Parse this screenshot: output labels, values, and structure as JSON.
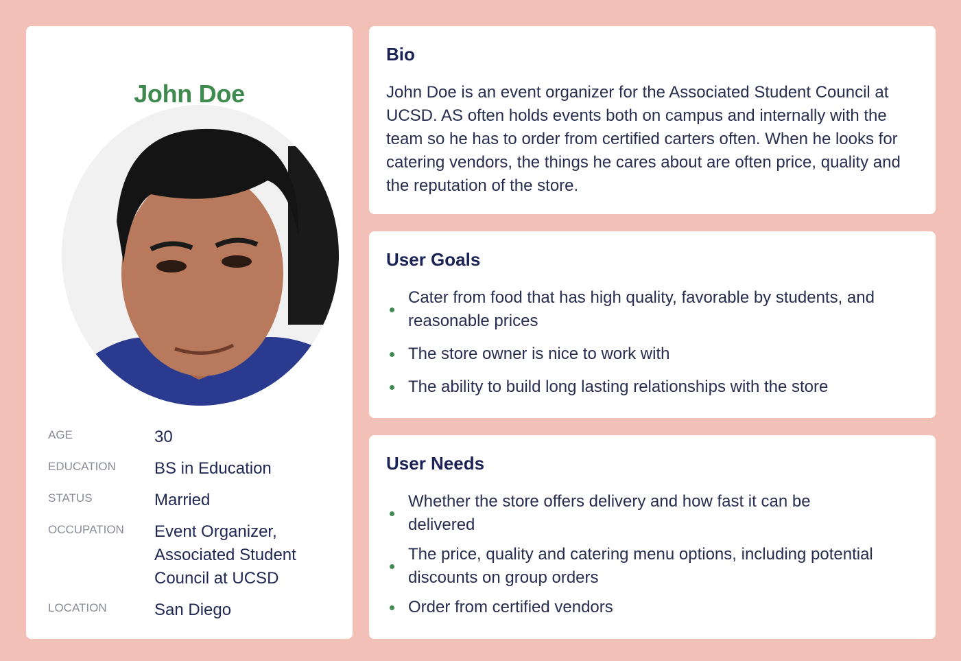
{
  "profile": {
    "name": "John Doe",
    "fields": [
      {
        "label": "AGE",
        "value": "30"
      },
      {
        "label": "EDUCATION",
        "value": "BS in Education"
      },
      {
        "label": "STATUS",
        "value": "Married"
      },
      {
        "label": "OCCUPATION",
        "value": "Event Organizer, Associated Student Council at UCSD"
      },
      {
        "label": "LOCATION",
        "value": "San Diego"
      }
    ]
  },
  "bio": {
    "title": "Bio",
    "text": "John Doe is an event organizer for the Associated Student Council at UCSD. AS often holds events both on campus and internally with the team so he has to order from certified carters often. When he looks for catering vendors, the things he cares about are often price, quality and the reputation of the store."
  },
  "goals": {
    "title": "User Goals",
    "items": [
      "Cater from food that has high quality, favorable by students, and reasonable prices",
      "The store owner is nice to work with",
      "The ability to build long lasting relationships with the store"
    ]
  },
  "needs": {
    "title": "User Needs",
    "items": [
      "Whether the store offers delivery and how fast it can be delivered",
      "The price, quality and catering menu options, including potential discounts on group orders",
      "Order from certified vendors"
    ]
  },
  "colors": {
    "background": "#f3c0b8",
    "card": "#ffffff",
    "accent_green": "#3f8a4e",
    "heading_navy": "#1b2255"
  }
}
